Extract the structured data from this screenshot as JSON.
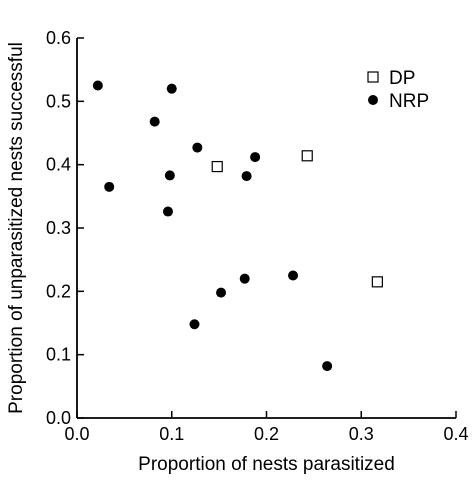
{
  "chart_data": {
    "type": "scatter",
    "title": "",
    "xlabel": "Proportion of nests parasitized",
    "ylabel": "Proportion of unparasitized nests successful",
    "xlim": [
      0.0,
      0.4
    ],
    "ylim": [
      0.0,
      0.6
    ],
    "xticks": [
      "0.0",
      "0.1",
      "0.2",
      "0.3",
      "0.4"
    ],
    "yticks": [
      "0.0",
      "0.1",
      "0.2",
      "0.3",
      "0.4",
      "0.5",
      "0.6"
    ],
    "grid": false,
    "legend_position": "top-right",
    "series": [
      {
        "name": "DP",
        "marker": "open-square",
        "color": "#000000",
        "points": [
          {
            "x": 0.148,
            "y": 0.397
          },
          {
            "x": 0.243,
            "y": 0.414
          },
          {
            "x": 0.317,
            "y": 0.215
          }
        ]
      },
      {
        "name": "NRP",
        "marker": "filled-circle",
        "color": "#000000",
        "points": [
          {
            "x": 0.022,
            "y": 0.525
          },
          {
            "x": 0.034,
            "y": 0.365
          },
          {
            "x": 0.082,
            "y": 0.468
          },
          {
            "x": 0.096,
            "y": 0.326
          },
          {
            "x": 0.098,
            "y": 0.383
          },
          {
            "x": 0.1,
            "y": 0.52
          },
          {
            "x": 0.124,
            "y": 0.148
          },
          {
            "x": 0.127,
            "y": 0.427
          },
          {
            "x": 0.152,
            "y": 0.198
          },
          {
            "x": 0.177,
            "y": 0.22
          },
          {
            "x": 0.179,
            "y": 0.382
          },
          {
            "x": 0.188,
            "y": 0.412
          },
          {
            "x": 0.228,
            "y": 0.225
          },
          {
            "x": 0.264,
            "y": 0.082
          }
        ]
      }
    ]
  }
}
